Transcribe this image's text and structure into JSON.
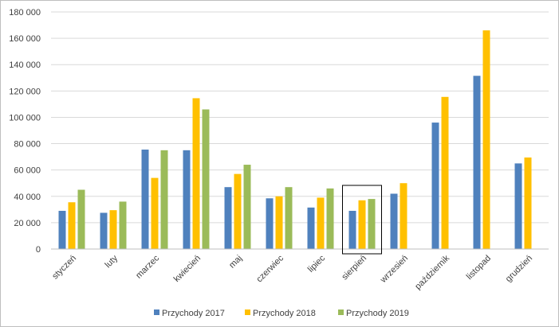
{
  "chart_data": {
    "type": "bar",
    "title": "",
    "xlabel": "",
    "ylabel": "",
    "categories": [
      "styczeń",
      "luty",
      "marzec",
      "kwiecień",
      "maj",
      "czerwiec",
      "lipiec",
      "sierpień",
      "wrzesień",
      "październik",
      "listopad",
      "grudzień"
    ],
    "series": [
      {
        "name": "Przychody 2017",
        "color": "#4f81bd",
        "values": [
          29000,
          27500,
          75500,
          75000,
          47000,
          38500,
          31500,
          29000,
          42000,
          96000,
          131500,
          65000
        ]
      },
      {
        "name": "Przychody 2018",
        "color": "#ffc000",
        "values": [
          35500,
          29500,
          54000,
          114500,
          57000,
          40000,
          39000,
          37000,
          50000,
          115500,
          166000,
          69500
        ]
      },
      {
        "name": "Przychody 2019",
        "color": "#9bbb59",
        "values": [
          45000,
          36000,
          75000,
          106000,
          64000,
          47000,
          46000,
          38000,
          null,
          null,
          null,
          null
        ]
      }
    ],
    "ylim": [
      0,
      180000
    ],
    "ytick_step": 20000,
    "ytick_labels": [
      "0",
      "20 000",
      "40 000",
      "60 000",
      "80 000",
      "100 000",
      "120 000",
      "140 000",
      "160 000",
      "180 000"
    ],
    "grid": true,
    "legend": "bottom",
    "highlighted_category": "sierpień",
    "colors": {
      "grid": "#d9d9d9",
      "axis": "#bfbfbf",
      "highlight_box": "#000000"
    }
  }
}
